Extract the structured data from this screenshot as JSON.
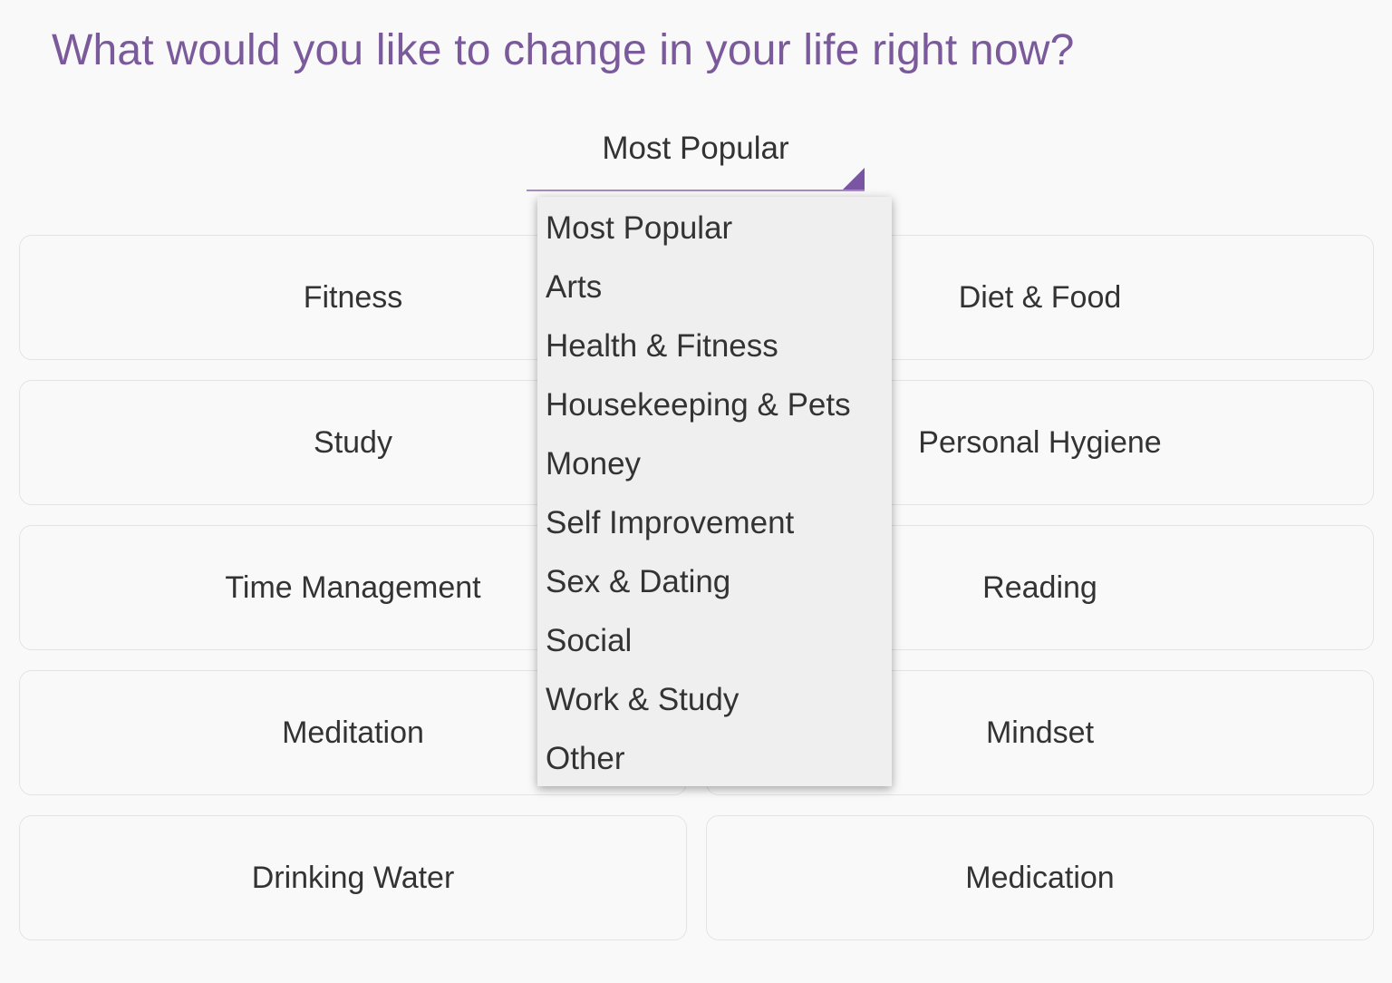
{
  "header": {
    "title": "What would you like to change in your life right now?"
  },
  "category_select": {
    "selected": "Most Popular",
    "accent_color": "#7a55a3"
  },
  "cards": [
    "Fitness",
    "Diet & Food",
    "Study",
    "Personal Hygiene",
    "Time Management",
    "Reading",
    "Meditation",
    "Mindset",
    "Drinking Water",
    "Medication"
  ],
  "dropdown": {
    "options": [
      "Most Popular",
      "Arts",
      "Health & Fitness",
      "Housekeeping & Pets",
      "Money",
      "Self Improvement",
      "Sex & Dating",
      "Social",
      "Work & Study",
      "Other"
    ]
  }
}
